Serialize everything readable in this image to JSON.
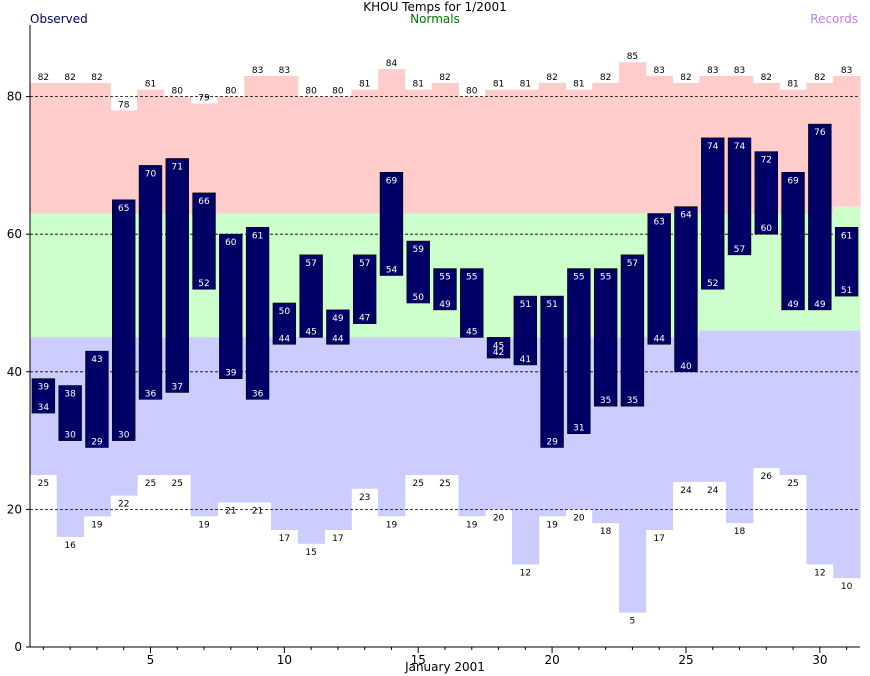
{
  "header": {
    "title": "KHOU Temps for 1/2001",
    "legend_observed": "Observed",
    "legend_normals": "Normals",
    "legend_records": "Records"
  },
  "colors": {
    "observed": "#000066",
    "normal_band": "#ccffcc",
    "record_high_band": "#ffcccc",
    "record_low_band": "#ccccff",
    "legend_observed": "#000066",
    "legend_normals": "#007700",
    "legend_records": "#c080e0"
  },
  "chart_data": {
    "type": "bar",
    "title": "KHOU Temps for 1/2001",
    "xlabel": "January 2001",
    "ylabel": "",
    "days": [
      1,
      2,
      3,
      4,
      5,
      6,
      7,
      8,
      9,
      10,
      11,
      12,
      13,
      14,
      15,
      16,
      17,
      18,
      19,
      20,
      21,
      22,
      23,
      24,
      25,
      26,
      27,
      28,
      29,
      30,
      31
    ],
    "x_ticks": [
      5,
      10,
      15,
      20,
      25,
      30
    ],
    "y_ticks": [
      0,
      20,
      40,
      60,
      80
    ],
    "ylim": [
      0,
      90
    ],
    "grid": "dashed at 20, 40, 60, 80",
    "legend": [
      "Observed",
      "Normals",
      "Records"
    ],
    "observed_high": [
      39,
      38,
      43,
      65,
      70,
      71,
      66,
      60,
      61,
      50,
      57,
      49,
      57,
      69,
      59,
      55,
      55,
      45,
      51,
      51,
      55,
      55,
      57,
      63,
      64,
      74,
      74,
      72,
      69,
      76,
      61
    ],
    "observed_low": [
      34,
      30,
      29,
      30,
      36,
      37,
      52,
      39,
      36,
      44,
      45,
      44,
      47,
      54,
      50,
      49,
      45,
      42,
      41,
      29,
      31,
      35,
      35,
      44,
      40,
      52,
      57,
      60,
      49,
      49,
      51
    ],
    "normal_high": [
      63,
      63,
      63,
      63,
      63,
      63,
      63,
      63,
      63,
      63,
      63,
      63,
      63,
      63,
      63,
      63,
      63,
      63,
      63,
      63,
      63,
      63,
      63,
      63,
      63,
      63,
      63,
      63,
      63,
      63,
      64
    ],
    "normal_low": [
      45,
      45,
      45,
      45,
      45,
      45,
      45,
      45,
      45,
      45,
      45,
      45,
      45,
      45,
      45,
      45,
      45,
      45,
      45,
      45,
      45,
      45,
      45,
      45,
      45,
      46,
      46,
      46,
      46,
      46,
      46
    ],
    "record_high": [
      82,
      82,
      82,
      78,
      81,
      80,
      79,
      80,
      83,
      83,
      80,
      80,
      81,
      84,
      81,
      82,
      80,
      81,
      81,
      82,
      81,
      82,
      85,
      83,
      82,
      83,
      83,
      82,
      81,
      82,
      83
    ],
    "record_low": [
      25,
      16,
      19,
      22,
      25,
      25,
      19,
      21,
      21,
      17,
      15,
      17,
      23,
      19,
      25,
      25,
      19,
      20,
      12,
      19,
      20,
      18,
      5,
      17,
      24,
      24,
      18,
      26,
      25,
      12,
      10
    ]
  }
}
